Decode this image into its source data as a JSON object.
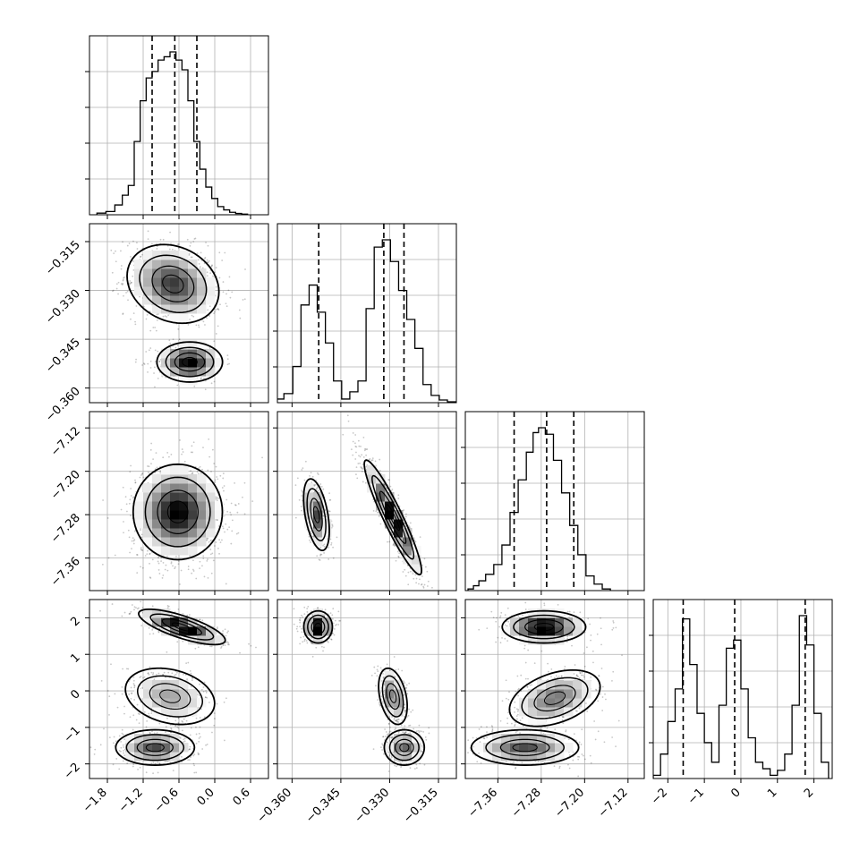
{
  "chart_data": {
    "type": "corner",
    "title": "",
    "n_params": 4,
    "grid": true,
    "style": {
      "hist_color": "#000000",
      "scatter_color": "#000000",
      "density_cmap": [
        "#ffffff",
        "#000000"
      ],
      "quantile_line": "dashed",
      "grid_color": "#b0b0b0"
    },
    "params": [
      {
        "index": 0,
        "range": [
          -2.1,
          0.9
        ],
        "ticks": [
          -1.8,
          -1.2,
          -0.6,
          0.0,
          0.6
        ],
        "tick_labels": [
          "−1.8",
          "−1.2",
          "−0.6",
          "0.0",
          "0.6"
        ],
        "quantiles": [
          -1.05,
          -0.67,
          -0.3
        ],
        "hist_bins": [
          -1.9,
          -1.75,
          -1.6,
          -1.5,
          -1.4,
          -1.3,
          -1.2,
          -1.1,
          -1.0,
          -0.9,
          -0.8,
          -0.7,
          -0.6,
          -0.5,
          -0.4,
          -0.3,
          -0.2,
          -0.1,
          0.0,
          0.1,
          0.2,
          0.3,
          0.4,
          0.5
        ],
        "hist_counts": [
          0.01,
          0.02,
          0.06,
          0.12,
          0.18,
          0.45,
          0.7,
          0.84,
          0.88,
          0.95,
          0.97,
          1.0,
          0.95,
          0.89,
          0.7,
          0.45,
          0.28,
          0.17,
          0.1,
          0.05,
          0.03,
          0.015,
          0.008,
          0.004
        ]
      },
      {
        "index": 1,
        "range": [
          -0.3645,
          -0.3095
        ],
        "ticks": [
          -0.36,
          -0.345,
          -0.33,
          -0.315
        ],
        "tick_labels": [
          "−0.360",
          "−0.345",
          "−0.330",
          "−0.315"
        ],
        "quantiles": [
          -0.3518,
          -0.3318,
          -0.3256
        ],
        "hist_bins": [
          -0.364,
          -0.361,
          -0.3585,
          -0.356,
          -0.3535,
          -0.351,
          -0.3485,
          -0.346,
          -0.3435,
          -0.341,
          -0.3385,
          -0.336,
          -0.3335,
          -0.331,
          -0.3285,
          -0.326,
          -0.3235,
          -0.321,
          -0.3185,
          -0.316,
          -0.3135,
          -0.311
        ],
        "hist_counts": [
          0.02,
          0.05,
          0.2,
          0.54,
          0.65,
          0.5,
          0.33,
          0.12,
          0.02,
          0.06,
          0.12,
          0.52,
          0.86,
          0.9,
          0.78,
          0.62,
          0.46,
          0.3,
          0.1,
          0.04,
          0.015,
          0.005
        ]
      },
      {
        "index": 2,
        "range": [
          -7.42,
          -7.09
        ],
        "ticks": [
          -7.36,
          -7.28,
          -7.2,
          -7.12
        ],
        "tick_labels": [
          "−7.36",
          "−7.28",
          "−7.20",
          "−7.12"
        ],
        "quantiles": [
          -7.33,
          -7.27,
          -7.22
        ],
        "hist_bins": [
          -7.41,
          -7.4,
          -7.39,
          -7.375,
          -7.36,
          -7.345,
          -7.33,
          -7.315,
          -7.3,
          -7.29,
          -7.28,
          -7.265,
          -7.25,
          -7.235,
          -7.22,
          -7.205,
          -7.19,
          -7.175,
          -7.16
        ],
        "hist_counts": [
          0.01,
          0.03,
          0.06,
          0.1,
          0.16,
          0.28,
          0.48,
          0.68,
          0.85,
          0.97,
          1.0,
          0.96,
          0.8,
          0.6,
          0.4,
          0.22,
          0.09,
          0.04,
          0.01
        ]
      },
      {
        "index": 3,
        "range": [
          -2.4,
          2.5
        ],
        "ticks": [
          -2,
          -1,
          0,
          1,
          2
        ],
        "tick_labels": [
          "−2",
          "−1",
          "0",
          "1",
          "2"
        ],
        "quantiles": [
          -1.58,
          -0.17,
          1.76
        ],
        "hist_bins": [
          -2.3,
          -2.1,
          -1.9,
          -1.7,
          -1.5,
          -1.3,
          -1.1,
          -0.9,
          -0.7,
          -0.5,
          -0.3,
          -0.1,
          0.1,
          0.3,
          0.5,
          0.7,
          0.9,
          1.1,
          1.3,
          1.5,
          1.7,
          1.9,
          2.1,
          2.3
        ],
        "hist_counts": [
          0.02,
          0.15,
          0.35,
          0.55,
          0.98,
          0.7,
          0.4,
          0.22,
          0.1,
          0.45,
          0.8,
          0.85,
          0.55,
          0.25,
          0.1,
          0.06,
          0.02,
          0.05,
          0.15,
          0.45,
          1.0,
          0.82,
          0.4,
          0.1
        ]
      }
    ],
    "joint": [
      {
        "row": 1,
        "col": 0,
        "modes": [
          {
            "cx": -0.7,
            "cy": -0.328,
            "sx": 0.35,
            "sy": 0.0055,
            "rho": -0.2,
            "w": 0.68
          },
          {
            "cx": -0.42,
            "cy": -0.352,
            "sx": 0.25,
            "sy": 0.0028,
            "rho": 0.0,
            "w": 0.32
          }
        ]
      },
      {
        "row": 2,
        "col": 0,
        "modes": [
          {
            "cx": -0.62,
            "cy": -7.275,
            "sx": 0.34,
            "sy": 0.04,
            "rho": 0.0,
            "w": 1.0
          }
        ]
      },
      {
        "row": 2,
        "col": 1,
        "modes": [
          {
            "cx": -0.3525,
            "cy": -7.28,
            "sx": 0.0018,
            "sy": 0.03,
            "rho": -0.45,
            "w": 0.32
          },
          {
            "cx": -0.329,
            "cy": -7.285,
            "sx": 0.004,
            "sy": 0.048,
            "rho": -0.93,
            "w": 0.68
          }
        ]
      },
      {
        "row": 3,
        "col": 0,
        "modes": [
          {
            "cx": -0.55,
            "cy": 1.75,
            "sx": 0.33,
            "sy": 0.22,
            "rho": -0.75,
            "w": 0.36
          },
          {
            "cx": -0.75,
            "cy": -0.15,
            "sx": 0.34,
            "sy": 0.35,
            "rho": -0.25,
            "w": 0.32
          },
          {
            "cx": -1.0,
            "cy": -1.55,
            "sx": 0.3,
            "sy": 0.22,
            "rho": 0.0,
            "w": 0.32
          }
        ]
      },
      {
        "row": 3,
        "col": 1,
        "modes": [
          {
            "cx": -0.352,
            "cy": 1.75,
            "sx": 0.002,
            "sy": 0.2,
            "rho": 0.0,
            "w": 0.36
          },
          {
            "cx": -0.329,
            "cy": -0.15,
            "sx": 0.002,
            "sy": 0.35,
            "rho": -0.35,
            "w": 0.32
          },
          {
            "cx": -0.3255,
            "cy": -1.55,
            "sx": 0.0028,
            "sy": 0.22,
            "rho": 0.0,
            "w": 0.32
          }
        ]
      },
      {
        "row": 3,
        "col": 2,
        "modes": [
          {
            "cx": -7.275,
            "cy": 1.75,
            "sx": 0.035,
            "sy": 0.2,
            "rho": 0.0,
            "w": 0.36
          },
          {
            "cx": -7.255,
            "cy": -0.2,
            "sx": 0.038,
            "sy": 0.35,
            "rho": 0.4,
            "w": 0.32
          },
          {
            "cx": -7.31,
            "cy": -1.55,
            "sx": 0.045,
            "sy": 0.22,
            "rho": 0.0,
            "w": 0.32
          }
        ]
      }
    ]
  }
}
